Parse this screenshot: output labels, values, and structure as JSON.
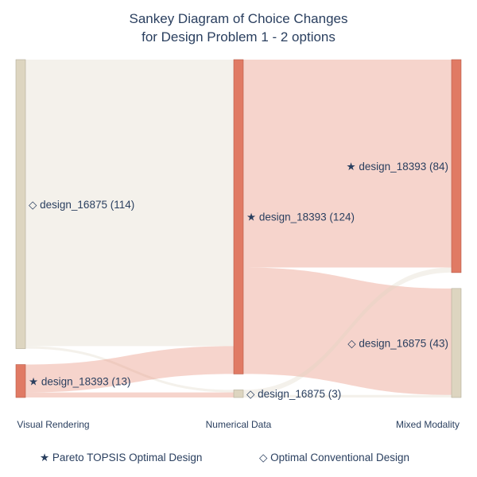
{
  "chart_data": {
    "type": "sankey",
    "title": "Sankey Diagram of Choice Changes",
    "subtitle": "for Design Problem 1 - 2 options",
    "stages": [
      "Visual Rendering",
      "Numerical Data",
      "Mixed Modality"
    ],
    "nodes": [
      {
        "id": "vr_16875",
        "stage": 0,
        "label": "◇ design_16875 (114)",
        "value": 114,
        "kind": "conventional"
      },
      {
        "id": "vr_18393",
        "stage": 0,
        "label": "★ design_18393 (13)",
        "value": 13,
        "kind": "pareto"
      },
      {
        "id": "nd_18393",
        "stage": 1,
        "label": "★ design_18393 (124)",
        "value": 124,
        "kind": "pareto"
      },
      {
        "id": "nd_16875",
        "stage": 1,
        "label": "◇ design_16875 (3)",
        "value": 3,
        "kind": "conventional"
      },
      {
        "id": "mm_18393",
        "stage": 2,
        "label": "★ design_18393 (84)",
        "value": 84,
        "kind": "pareto"
      },
      {
        "id": "mm_16875",
        "stage": 2,
        "label": "◇ design_16875 (43)",
        "value": 43,
        "kind": "conventional"
      }
    ],
    "links": [
      {
        "source": "vr_16875",
        "target": "nd_18393",
        "value": 113
      },
      {
        "source": "vr_16875",
        "target": "nd_16875",
        "value": 1
      },
      {
        "source": "vr_18393",
        "target": "nd_18393",
        "value": 11
      },
      {
        "source": "vr_18393",
        "target": "nd_16875",
        "value": 2
      },
      {
        "source": "nd_18393",
        "target": "mm_18393",
        "value": 82
      },
      {
        "source": "nd_18393",
        "target": "mm_16875",
        "value": 42
      },
      {
        "source": "nd_16875",
        "target": "mm_18393",
        "value": 2
      },
      {
        "source": "nd_16875",
        "target": "mm_16875",
        "value": 1
      }
    ],
    "legend": [
      {
        "symbol": "★",
        "label": "Pareto TOPSIS Optimal Design"
      },
      {
        "symbol": "◇",
        "label": "Optimal Conventional Design"
      }
    ],
    "colors": {
      "pareto_node": "#e07a64",
      "pareto_node_border": "#b85a46",
      "conventional_node": "#ddd5c0",
      "conventional_node_border": "#b5ad98",
      "pareto_link": "rgba(232, 148, 128, 0.40)",
      "conventional_link": "rgba(221, 213, 192, 0.32)",
      "text": "#2a3f5f"
    }
  }
}
